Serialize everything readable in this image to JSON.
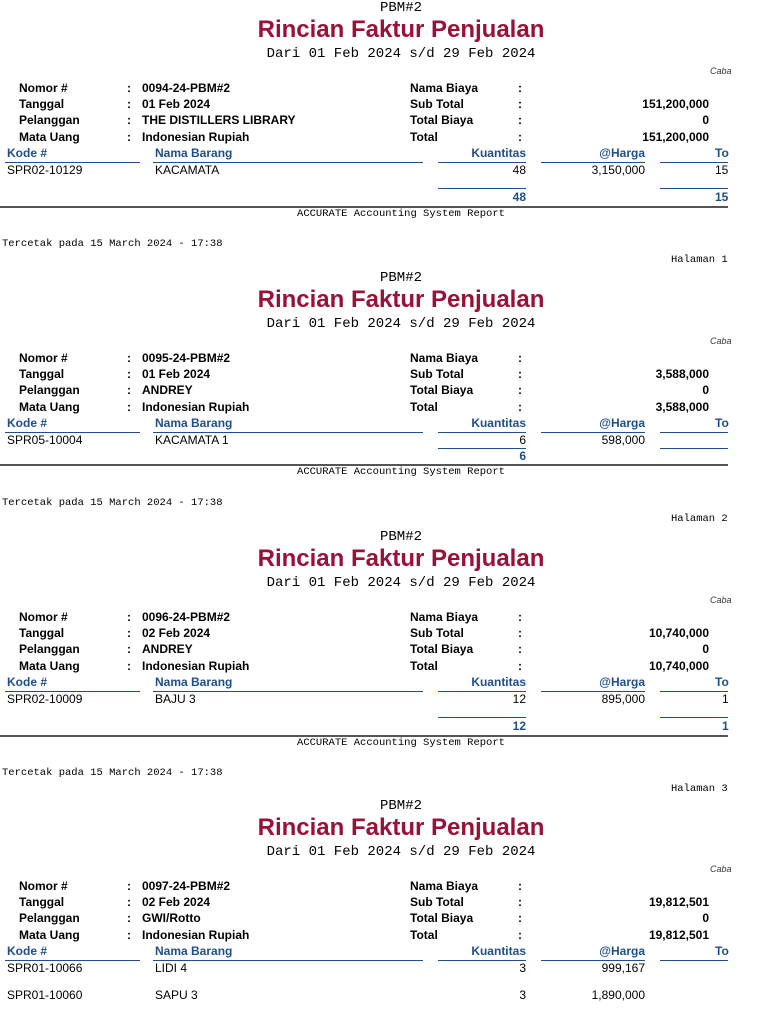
{
  "report": {
    "company": "PBM#2",
    "title": "Rincian Faktur Penjualan",
    "period": "Dari 01 Feb 2024 s/d 29 Feb 2024",
    "branch_label": "Caba",
    "footer": "ACCURATE Accounting System Report",
    "printed": "Tercetak pada 15 March 2024 - 17:38"
  },
  "labels": {
    "nomor": "Nomor #",
    "tanggal": "Tanggal",
    "pelanggan": "Pelanggan",
    "mata_uang": "Mata Uang",
    "nama_biaya": "Nama Biaya",
    "sub_total": "Sub Total",
    "total_biaya": "Total Biaya",
    "total": "Total",
    "colon": ":",
    "kode": "Kode #",
    "nama_barang": "Nama Barang",
    "kuantitas": "Kuantitas",
    "harga": "@Harga",
    "col_total": "To"
  },
  "invoices": [
    {
      "nomor": "0094-24-PBM#2",
      "tanggal": "01 Feb 2024",
      "pelanggan": "THE DISTILLERS LIBRARY",
      "mata_uang": "Indonesian Rupiah",
      "nama_biaya": "",
      "sub_total": "151,200,000",
      "total_biaya": "0",
      "total": "151,200,000",
      "items": [
        {
          "kode": "SPR02-10129",
          "nama": "KACAMATA",
          "qty": "48",
          "harga": "3,150,000",
          "total": "15"
        }
      ],
      "qty_total": "48",
      "grand_total": "15",
      "page": "Halaman 1"
    },
    {
      "nomor": "0095-24-PBM#2",
      "tanggal": "01 Feb 2024",
      "pelanggan": "ANDREY",
      "mata_uang": "Indonesian Rupiah",
      "nama_biaya": "",
      "sub_total": "3,588,000",
      "total_biaya": "0",
      "total": "3,588,000",
      "items": [
        {
          "kode": "SPR05-10004",
          "nama": "KACAMATA 1",
          "qty": "6",
          "harga": "598,000",
          "total": ""
        }
      ],
      "qty_total": "6",
      "grand_total": "",
      "page": "Halaman 2"
    },
    {
      "nomor": "0096-24-PBM#2",
      "tanggal": "02 Feb 2024",
      "pelanggan": "ANDREY",
      "mata_uang": "Indonesian Rupiah",
      "nama_biaya": "",
      "sub_total": "10,740,000",
      "total_biaya": "0",
      "total": "10,740,000",
      "items": [
        {
          "kode": "SPR02-10009",
          "nama": "BAJU 3",
          "qty": "12",
          "harga": "895,000",
          "total": "1"
        }
      ],
      "qty_total": "12",
      "grand_total": "1",
      "page": "Halaman 3"
    },
    {
      "nomor": "0097-24-PBM#2",
      "tanggal": "02 Feb 2024",
      "pelanggan": "GWI/Rotto",
      "mata_uang": "Indonesian Rupiah",
      "nama_biaya": "",
      "sub_total": "19,812,501",
      "total_biaya": "0",
      "total": "19,812,501",
      "items": [
        {
          "kode": "SPR01-10066",
          "nama": "LIDI 4",
          "qty": "3",
          "harga": "999,167",
          "total": ""
        },
        {
          "kode": "SPR01-10060",
          "nama": "SAPU 3",
          "qty": "3",
          "harga": "1,890,000",
          "total": ""
        }
      ]
    }
  ]
}
